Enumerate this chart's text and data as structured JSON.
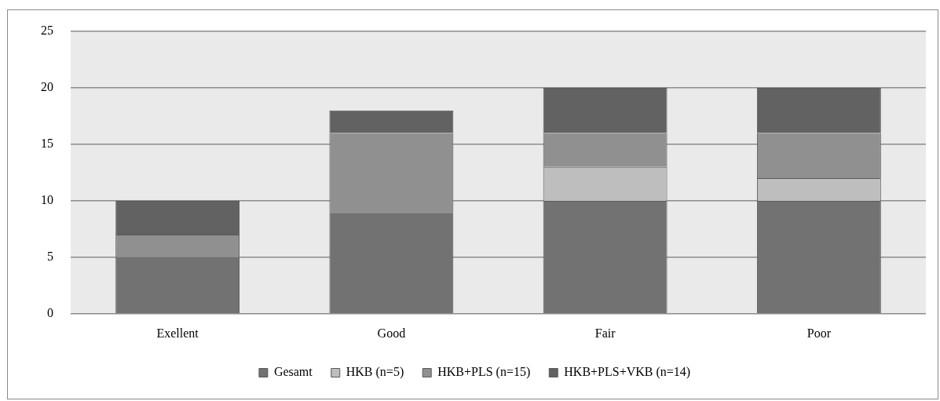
{
  "chart_data": {
    "type": "bar",
    "categories": [
      "Exellent",
      "Good",
      "Fair",
      "Poor"
    ],
    "stacked": true,
    "series": [
      {
        "name": "Gesamt",
        "color": "#727272",
        "values": [
          5,
          9,
          10,
          10
        ]
      },
      {
        "name": "HKB (n=5)",
        "color": "#bebebe",
        "values": [
          0,
          0,
          3,
          2
        ]
      },
      {
        "name": "HKB+PLS (n=15)",
        "color": "#909090",
        "values": [
          2,
          7,
          3,
          4
        ]
      },
      {
        "name": "HKB+PLS+VKB (n=14)",
        "color": "#626262",
        "values": [
          3,
          2,
          4,
          4
        ]
      }
    ],
    "ylim": [
      0,
      25
    ],
    "yticks": [
      0,
      5,
      10,
      15,
      20,
      25
    ],
    "grid": "y",
    "legend": "bottom"
  }
}
